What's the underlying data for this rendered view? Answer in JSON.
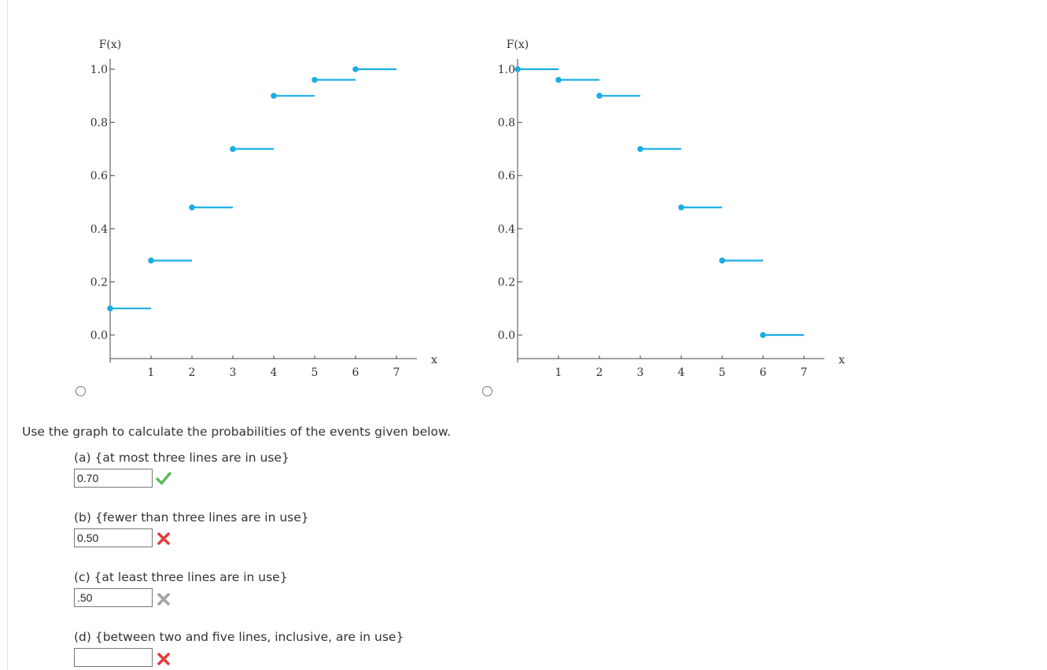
{
  "chart_data": [
    {
      "type": "line",
      "option": "left",
      "ylabel": "F(x)",
      "xlabel": "x",
      "x_ticks": [
        "1",
        "2",
        "3",
        "4",
        "5",
        "6",
        "7"
      ],
      "y_ticks": [
        "0.0",
        "0.2",
        "0.4",
        "0.6",
        "0.8",
        "1.0"
      ],
      "xlim": [
        0,
        7
      ],
      "ylim": [
        0,
        1
      ],
      "color": "#1aaee5",
      "steps": [
        {
          "x": 0,
          "y": 0.1
        },
        {
          "x": 1,
          "y": 0.28
        },
        {
          "x": 2,
          "y": 0.48
        },
        {
          "x": 3,
          "y": 0.7
        },
        {
          "x": 4,
          "y": 0.9
        },
        {
          "x": 5,
          "y": 0.96
        },
        {
          "x": 6,
          "y": 1.0
        }
      ]
    },
    {
      "type": "line",
      "option": "right",
      "ylabel": "F(x)",
      "xlabel": "x",
      "x_ticks": [
        "1",
        "2",
        "3",
        "4",
        "5",
        "6",
        "7"
      ],
      "y_ticks": [
        "0.0",
        "0.2",
        "0.4",
        "0.6",
        "0.8",
        "1.0"
      ],
      "xlim": [
        0,
        7
      ],
      "ylim": [
        0,
        1
      ],
      "color": "#1aaee5",
      "steps": [
        {
          "x": 0,
          "y": 1.0
        },
        {
          "x": 1,
          "y": 0.96
        },
        {
          "x": 2,
          "y": 0.9
        },
        {
          "x": 3,
          "y": 0.7
        },
        {
          "x": 4,
          "y": 0.48
        },
        {
          "x": 5,
          "y": 0.28
        },
        {
          "x": 6,
          "y": 0.0
        }
      ]
    }
  ],
  "instructions": "Use the graph to calculate the probabilities of the events given below.",
  "questions": [
    {
      "label": "(a) {at most three lines are in use}",
      "value": "0.70",
      "status": "correct"
    },
    {
      "label": "(b) {fewer than three lines are in use}",
      "value": "0.50",
      "status": "incorrect"
    },
    {
      "label": "(c) {at least three lines are in use}",
      "value": ".50",
      "status": "incorrect-gray"
    },
    {
      "label": "(d) {between two and five lines, inclusive, are in use}",
      "value": "",
      "status": "incorrect"
    }
  ],
  "colors": {
    "step_line": "#1aaee5",
    "correct": "#5cb85c",
    "incorrect": "#e23e3e",
    "incorrect_gray": "#a3a3a3"
  },
  "icons": {
    "correct": "check-icon",
    "incorrect": "cross-icon"
  }
}
